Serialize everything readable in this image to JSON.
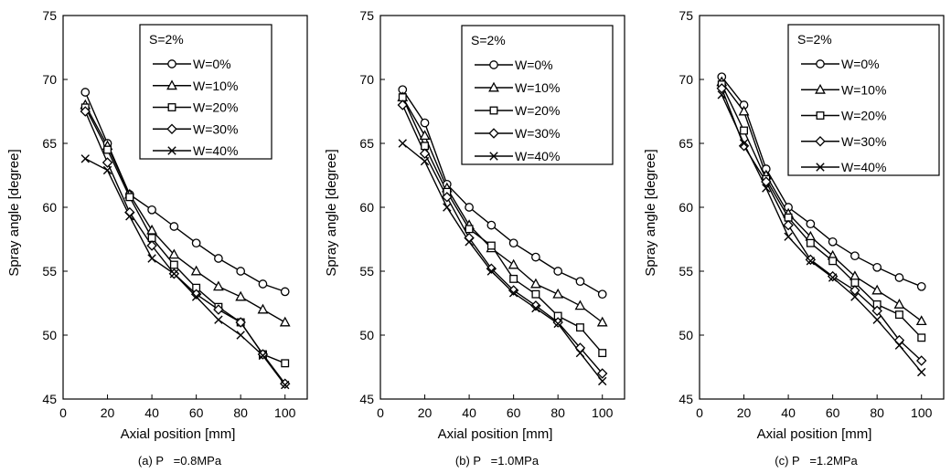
{
  "chart_data": [
    {
      "type": "line",
      "caption": "(a) P   =0.8MPa",
      "xlabel": "Axial position [mm]",
      "ylabel": "Spray angle [degree]",
      "xlim": [
        0,
        110
      ],
      "ylim": [
        45,
        75
      ],
      "x_ticks": [
        0,
        20,
        40,
        60,
        80,
        100
      ],
      "y_ticks": [
        45,
        50,
        55,
        60,
        65,
        70,
        75
      ],
      "grid": false,
      "legend_title": "S=2%",
      "legend_position": "top-right",
      "x": [
        10,
        20,
        30,
        40,
        50,
        60,
        70,
        80,
        90,
        100
      ],
      "series": [
        {
          "name": "W=0%",
          "marker": "circle",
          "values": [
            69.0,
            65.0,
            61.0,
            59.8,
            58.5,
            57.2,
            56.0,
            55.0,
            54.0,
            53.4
          ]
        },
        {
          "name": "W=10%",
          "marker": "triangle",
          "values": [
            68.0,
            64.8,
            61.0,
            58.2,
            56.3,
            55.0,
            53.8,
            53.0,
            52.0,
            51.0
          ]
        },
        {
          "name": "W=20%",
          "marker": "square",
          "values": [
            67.8,
            64.5,
            60.8,
            57.6,
            55.5,
            53.7,
            52.2,
            51.0,
            48.5,
            47.8
          ]
        },
        {
          "name": "W=30%",
          "marker": "diamond",
          "values": [
            67.5,
            63.5,
            59.6,
            57.0,
            54.8,
            53.2,
            52.0,
            51.0,
            48.5,
            46.2
          ]
        },
        {
          "name": "W=40%",
          "marker": "x",
          "values": [
            63.8,
            62.9,
            59.3,
            56.0,
            54.8,
            53.0,
            51.2,
            50.0,
            48.4,
            46.1
          ]
        }
      ]
    },
    {
      "type": "line",
      "caption": "(b) P   =1.0MPa",
      "xlabel": "Axial position [mm]",
      "ylabel": "Spray angle [degree]",
      "xlim": [
        0,
        110
      ],
      "ylim": [
        45,
        75
      ],
      "x_ticks": [
        0,
        20,
        40,
        60,
        80,
        100
      ],
      "y_ticks": [
        45,
        50,
        55,
        60,
        65,
        70,
        75
      ],
      "grid": false,
      "legend_title": "S=2%",
      "legend_position": "top-right",
      "x": [
        10,
        20,
        30,
        40,
        50,
        60,
        70,
        80,
        90,
        100
      ],
      "series": [
        {
          "name": "W=0%",
          "marker": "circle",
          "values": [
            69.2,
            66.6,
            61.8,
            60.0,
            58.6,
            57.2,
            56.1,
            55.0,
            54.2,
            53.2
          ]
        },
        {
          "name": "W=10%",
          "marker": "triangle",
          "values": [
            68.6,
            65.6,
            61.5,
            58.6,
            56.8,
            55.5,
            54.0,
            53.2,
            52.3,
            51.0
          ]
        },
        {
          "name": "W=20%",
          "marker": "square",
          "values": [
            68.6,
            64.8,
            61.2,
            58.3,
            57.0,
            54.4,
            53.2,
            51.5,
            50.6,
            48.6
          ]
        },
        {
          "name": "W=30%",
          "marker": "diamond",
          "values": [
            68.0,
            64.2,
            60.8,
            57.6,
            55.2,
            53.5,
            52.3,
            51.0,
            49.0,
            47.0
          ]
        },
        {
          "name": "W=40%",
          "marker": "x",
          "values": [
            65.0,
            63.6,
            60.0,
            57.3,
            55.0,
            53.3,
            52.1,
            50.9,
            48.6,
            46.4
          ]
        }
      ]
    },
    {
      "type": "line",
      "caption": "(c) P   =1.2MPa",
      "xlabel": "Axial position [mm]",
      "ylabel": "Spray angle [degree]",
      "xlim": [
        0,
        110
      ],
      "ylim": [
        45,
        75
      ],
      "x_ticks": [
        0,
        20,
        40,
        60,
        80,
        100
      ],
      "y_ticks": [
        45,
        50,
        55,
        60,
        65,
        70,
        75
      ],
      "grid": false,
      "legend_title": "S=2%",
      "legend_position": "top-right",
      "x": [
        10,
        20,
        30,
        40,
        50,
        60,
        70,
        80,
        90,
        100
      ],
      "series": [
        {
          "name": "W=0%",
          "marker": "circle",
          "values": [
            70.2,
            68.0,
            63.0,
            60.0,
            58.7,
            57.3,
            56.2,
            55.3,
            54.5,
            53.8
          ]
        },
        {
          "name": "W=10%",
          "marker": "triangle",
          "values": [
            69.8,
            67.5,
            62.5,
            59.5,
            57.7,
            56.2,
            54.6,
            53.5,
            52.4,
            51.1
          ]
        },
        {
          "name": "W=20%",
          "marker": "square",
          "values": [
            69.6,
            66.0,
            62.2,
            59.2,
            57.2,
            55.8,
            54.1,
            52.4,
            51.6,
            49.8
          ]
        },
        {
          "name": "W=30%",
          "marker": "diamond",
          "values": [
            69.3,
            64.8,
            62.0,
            58.6,
            55.9,
            54.6,
            53.5,
            51.9,
            49.6,
            48.0
          ]
        },
        {
          "name": "W=40%",
          "marker": "x",
          "values": [
            68.8,
            65.0,
            61.5,
            57.7,
            55.8,
            54.5,
            53.0,
            51.2,
            49.2,
            47.1
          ]
        }
      ]
    }
  ]
}
